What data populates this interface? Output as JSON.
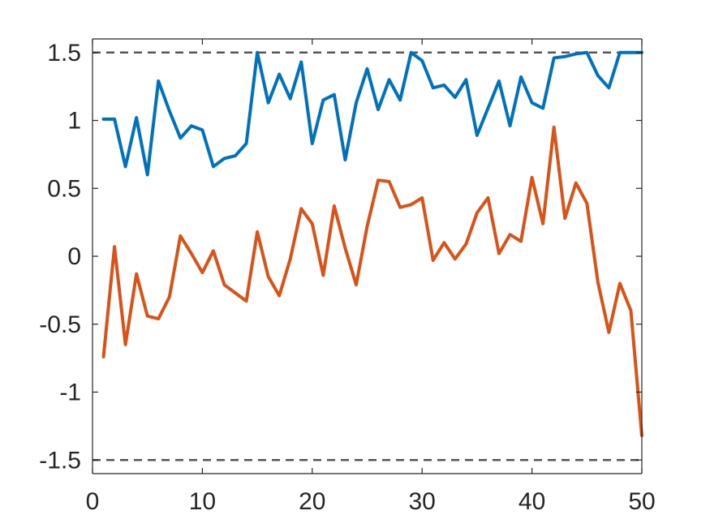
{
  "chart_data": {
    "type": "line",
    "title": "",
    "xlabel": "",
    "ylabel": "",
    "xlim": [
      0,
      50
    ],
    "ylim": [
      -1.6,
      1.6
    ],
    "grid": false,
    "xticks": [
      0,
      10,
      20,
      30,
      40,
      50
    ],
    "xtick_labels": [
      "0",
      "10",
      "20",
      "30",
      "40",
      "50"
    ],
    "yticks": [
      1.5,
      1,
      0.5,
      0,
      -0.5,
      -1,
      -1.5
    ],
    "ytick_labels": [
      "1.5",
      "1",
      "0.5",
      "0",
      "-0.5",
      "-1",
      "-1.5"
    ],
    "reference_lines": [
      {
        "y": 1.5,
        "style": "dashed",
        "color": "#555555"
      },
      {
        "y": -1.5,
        "style": "dashed",
        "color": "#555555"
      }
    ],
    "x": [
      1,
      2,
      3,
      4,
      5,
      6,
      7,
      8,
      9,
      10,
      11,
      12,
      13,
      14,
      15,
      16,
      17,
      18,
      19,
      20,
      21,
      22,
      23,
      24,
      25,
      26,
      27,
      28,
      29,
      30,
      31,
      32,
      33,
      34,
      35,
      36,
      37,
      38,
      39,
      40,
      41,
      42,
      43,
      44,
      45,
      46,
      47,
      48,
      49,
      50
    ],
    "series": [
      {
        "color": "#0072BD",
        "values": [
          1.01,
          1.01,
          0.66,
          1.02,
          0.6,
          1.29,
          1.07,
          0.87,
          0.96,
          0.93,
          0.66,
          0.72,
          0.74,
          0.83,
          1.5,
          1.13,
          1.34,
          1.16,
          1.43,
          0.83,
          1.15,
          1.19,
          0.71,
          1.13,
          1.38,
          1.08,
          1.3,
          1.15,
          1.5,
          1.44,
          1.24,
          1.26,
          1.17,
          1.3,
          0.89,
          1.09,
          1.29,
          0.96,
          1.32,
          1.13,
          1.09,
          1.46,
          1.47,
          1.49,
          1.5,
          1.33,
          1.24,
          1.5,
          1.5,
          1.5
        ]
      },
      {
        "color": "#D95319",
        "values": [
          -0.74,
          0.07,
          -0.65,
          -0.13,
          -0.44,
          -0.46,
          -0.3,
          0.15,
          0.02,
          -0.12,
          0.04,
          -0.21,
          -0.27,
          -0.33,
          0.18,
          -0.15,
          -0.29,
          -0.02,
          0.35,
          0.24,
          -0.14,
          0.37,
          0.06,
          -0.21,
          0.22,
          0.56,
          0.55,
          0.36,
          0.38,
          0.43,
          -0.03,
          0.1,
          -0.02,
          0.09,
          0.32,
          0.43,
          0.02,
          0.16,
          0.11,
          0.58,
          0.24,
          0.95,
          0.28,
          0.54,
          0.39,
          -0.19,
          -0.56,
          -0.2,
          -0.4,
          -1.32
        ]
      }
    ]
  }
}
